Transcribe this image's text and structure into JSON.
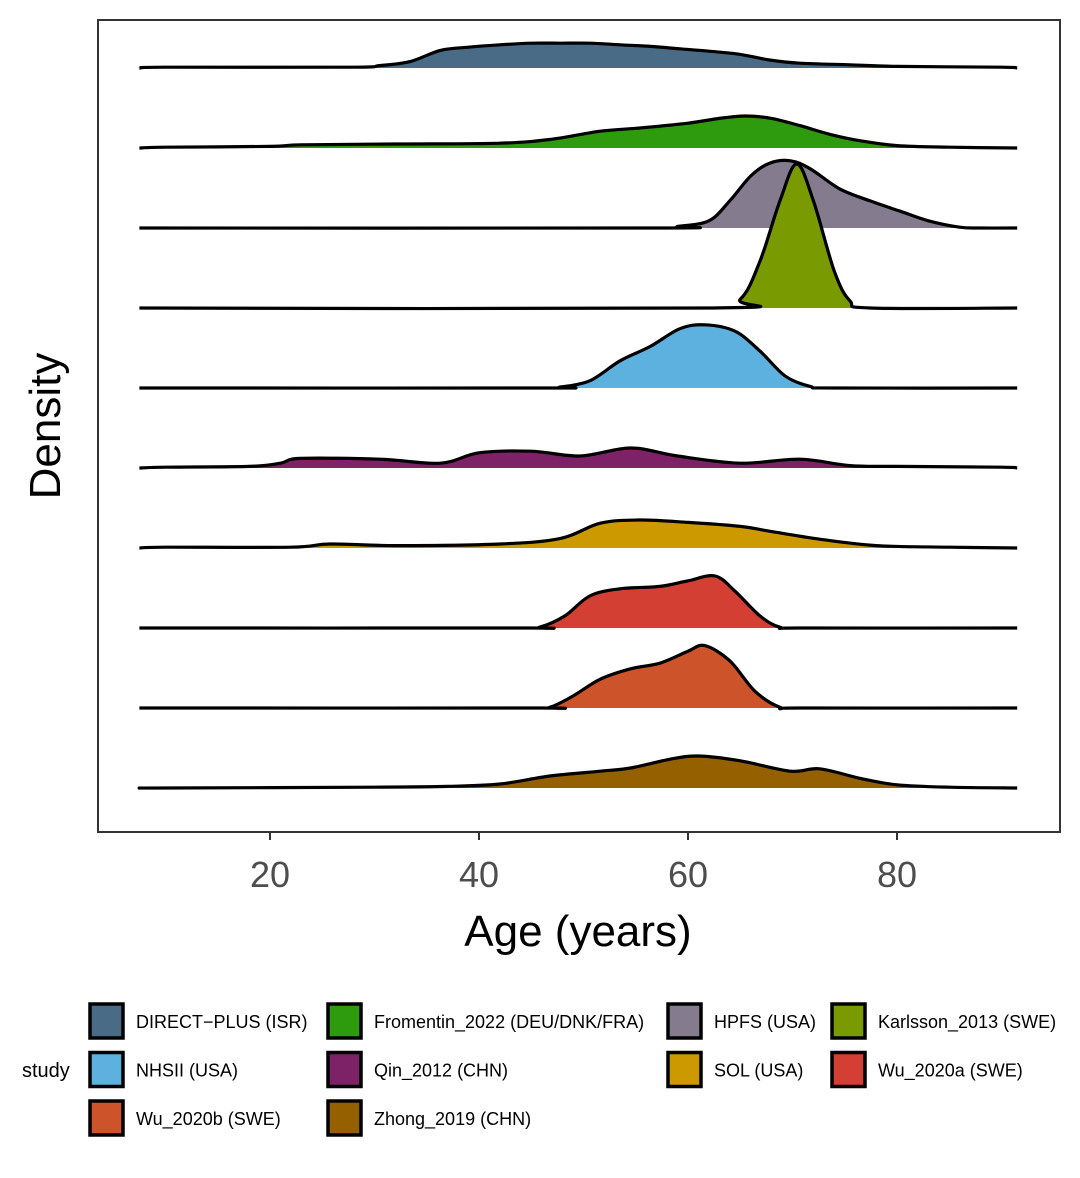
{
  "chart_data": {
    "type": "ridgeline",
    "xlabel": "Age (years)",
    "ylabel": "Density",
    "xlim": [
      7.5,
      91.5
    ],
    "xticks": [
      20,
      40,
      60,
      80
    ],
    "grid": false,
    "legend": {
      "title": "study",
      "placement": "bottom"
    },
    "series": [
      {
        "name": "DIRECT−PLUS (ISR)",
        "color": "#4a6b86",
        "points": [
          [
            10,
            0.01
          ],
          [
            27.7,
            0.01
          ],
          [
            30.5,
            0.03
          ],
          [
            33.4,
            0.08
          ],
          [
            36.3,
            0.22
          ],
          [
            39,
            0.26
          ],
          [
            42,
            0.29
          ],
          [
            45,
            0.31
          ],
          [
            47.8,
            0.31
          ],
          [
            50.6,
            0.31
          ],
          [
            53.5,
            0.29
          ],
          [
            56.4,
            0.27
          ],
          [
            59.2,
            0.24
          ],
          [
            62,
            0.21
          ],
          [
            65,
            0.17
          ],
          [
            67.8,
            0.1
          ],
          [
            70.7,
            0.06
          ],
          [
            75.5,
            0.04
          ],
          [
            80,
            0.02
          ],
          [
            90,
            0.01
          ]
        ]
      },
      {
        "name": "Fromentin_2022 (DEU/DNK/FRA)",
        "color": "#2e9a0e",
        "points": [
          [
            10,
            0.01
          ],
          [
            20,
            0.02
          ],
          [
            23,
            0.04
          ],
          [
            32,
            0.05
          ],
          [
            42,
            0.06
          ],
          [
            47,
            0.11
          ],
          [
            51.6,
            0.21
          ],
          [
            55.4,
            0.25
          ],
          [
            60,
            0.31
          ],
          [
            63,
            0.37
          ],
          [
            65.5,
            0.4
          ],
          [
            68,
            0.37
          ],
          [
            70.7,
            0.28
          ],
          [
            73.6,
            0.17
          ],
          [
            76.5,
            0.09
          ],
          [
            80,
            0.03
          ],
          [
            85,
            0.01
          ]
        ]
      },
      {
        "name": "HPFS (USA)",
        "color": "#857b8e",
        "points": [
          [
            57,
            0.0
          ],
          [
            59,
            0.02
          ],
          [
            62,
            0.09
          ],
          [
            64,
            0.34
          ],
          [
            66,
            0.65
          ],
          [
            67.8,
            0.81
          ],
          [
            69.8,
            0.84
          ],
          [
            71.7,
            0.74
          ],
          [
            74.5,
            0.49
          ],
          [
            77.4,
            0.34
          ],
          [
            80.3,
            0.21
          ],
          [
            83,
            0.09
          ],
          [
            86,
            0.01
          ],
          [
            88,
            0.0
          ]
        ]
      },
      {
        "name": "Karlsson_2013 (SWE)",
        "color": "#7a9a01",
        "points": [
          [
            62,
            0.0
          ],
          [
            65,
            0.11
          ],
          [
            66.9,
            0.59
          ],
          [
            68.8,
            1.34
          ],
          [
            70.4,
            1.8
          ],
          [
            72,
            1.34
          ],
          [
            74,
            0.46
          ],
          [
            75.5,
            0.09
          ],
          [
            77.4,
            0.0
          ]
        ]
      },
      {
        "name": "NHSII (USA)",
        "color": "#5cb1de",
        "points": [
          [
            46,
            0.0
          ],
          [
            47.7,
            0.01
          ],
          [
            50.6,
            0.09
          ],
          [
            53.5,
            0.34
          ],
          [
            56.4,
            0.52
          ],
          [
            59.2,
            0.74
          ],
          [
            61.6,
            0.79
          ],
          [
            64.5,
            0.71
          ],
          [
            66.9,
            0.46
          ],
          [
            69.3,
            0.15
          ],
          [
            71.7,
            0.02
          ],
          [
            74,
            0.0
          ]
        ]
      },
      {
        "name": "Qin_2012 (CHN)",
        "color": "#7d2267",
        "points": [
          [
            10,
            0.01
          ],
          [
            18,
            0.02
          ],
          [
            21,
            0.06
          ],
          [
            22.9,
            0.12
          ],
          [
            30.5,
            0.11
          ],
          [
            36.3,
            0.06
          ],
          [
            40,
            0.19
          ],
          [
            45,
            0.21
          ],
          [
            49.7,
            0.15
          ],
          [
            54.5,
            0.25
          ],
          [
            59,
            0.15
          ],
          [
            65,
            0.06
          ],
          [
            70.7,
            0.11
          ],
          [
            75.5,
            0.03
          ],
          [
            80,
            0.02
          ],
          [
            90,
            0.01
          ]
        ]
      },
      {
        "name": "SOL (USA)",
        "color": "#cc9a00",
        "points": [
          [
            10,
            0.01
          ],
          [
            22,
            0.01
          ],
          [
            25.7,
            0.05
          ],
          [
            32,
            0.03
          ],
          [
            42,
            0.05
          ],
          [
            47.8,
            0.12
          ],
          [
            51.6,
            0.31
          ],
          [
            55.4,
            0.35
          ],
          [
            60,
            0.32
          ],
          [
            65,
            0.27
          ],
          [
            67.8,
            0.21
          ],
          [
            72.6,
            0.11
          ],
          [
            78,
            0.03
          ],
          [
            85,
            0.01
          ]
        ]
      },
      {
        "name": "Wu_2020a (SWE)",
        "color": "#d43f33",
        "points": [
          [
            44,
            0.0
          ],
          [
            45.8,
            0.01
          ],
          [
            48.2,
            0.15
          ],
          [
            50.6,
            0.4
          ],
          [
            53.5,
            0.49
          ],
          [
            57.3,
            0.52
          ],
          [
            60,
            0.59
          ],
          [
            62.6,
            0.65
          ],
          [
            64.5,
            0.46
          ],
          [
            66.9,
            0.15
          ],
          [
            68.8,
            0.01
          ],
          [
            71,
            0.0
          ]
        ]
      },
      {
        "name": "Wu_2020b (SWE)",
        "color": "#cd532b",
        "points": [
          [
            45,
            0.0
          ],
          [
            46.8,
            0.01
          ],
          [
            49,
            0.15
          ],
          [
            51.6,
            0.36
          ],
          [
            54.5,
            0.49
          ],
          [
            57.3,
            0.56
          ],
          [
            60,
            0.71
          ],
          [
            61.6,
            0.78
          ],
          [
            64,
            0.59
          ],
          [
            66.4,
            0.21
          ],
          [
            68.8,
            0.01
          ],
          [
            71,
            0.0
          ]
        ]
      },
      {
        "name": "Zhong_2019 (CHN)",
        "color": "#946000",
        "points": [
          [
            10,
            0.0
          ],
          [
            30,
            0.01
          ],
          [
            37,
            0.02
          ],
          [
            42,
            0.05
          ],
          [
            46.8,
            0.15
          ],
          [
            51.6,
            0.21
          ],
          [
            54.5,
            0.25
          ],
          [
            58.3,
            0.36
          ],
          [
            61,
            0.4
          ],
          [
            65,
            0.34
          ],
          [
            69.8,
            0.21
          ],
          [
            72.6,
            0.24
          ],
          [
            76.5,
            0.12
          ],
          [
            80,
            0.04
          ],
          [
            85,
            0.01
          ]
        ]
      }
    ]
  }
}
